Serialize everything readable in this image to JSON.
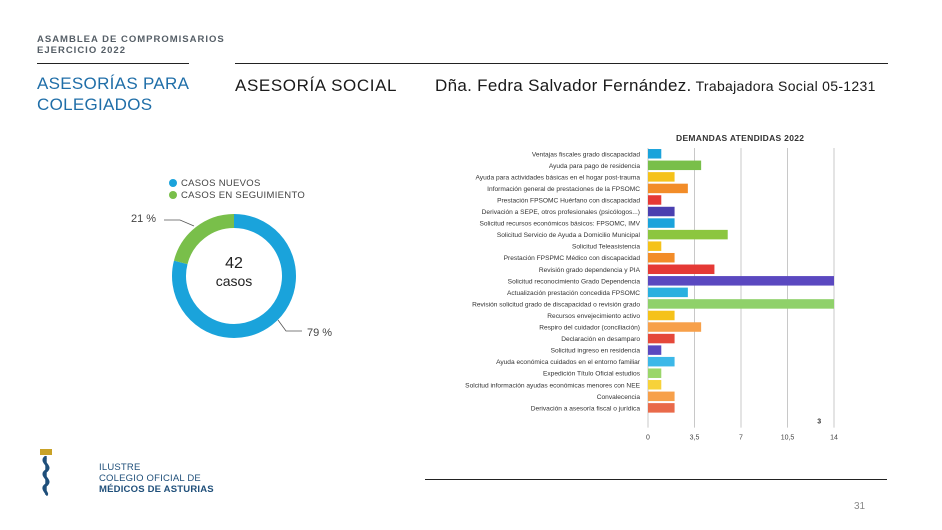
{
  "header": {
    "line1": "ASAMBLEA DE COMPROMISARIOS",
    "line2": "EJERCICIO 2022",
    "left_title_line1": "ASESORÍAS PARA",
    "left_title_line2": "COLEGIADOS",
    "section_title": "ASESORÍA SOCIAL",
    "person_name": "Dña. Fedra Salvador Fernández.",
    "person_role": "Trabajadora Social 05-1231"
  },
  "donut": {
    "legend": [
      {
        "label": "CASOS NUEVOS",
        "color": "#1aa3db"
      },
      {
        "label": "CASOS EN SEGUIMIENTO",
        "color": "#79bf4a"
      }
    ],
    "total_value": "42",
    "total_label": "casos",
    "pct_new_label": "79 %",
    "pct_followup_label": "21 %",
    "pct_new": 79,
    "pct_followup": 21
  },
  "chart_data": {
    "type": "bar",
    "orientation": "horizontal",
    "title": "DEMANDAS ATENDIDAS 2022",
    "categories": [
      "Ventajas fiscales grado discapacidad",
      "Ayuda para pago de residencia",
      "Ayuda para actividades básicas en el hogar post-trauma",
      "Información general de prestaciones de la FPSOMC",
      "Prestación FPSOMC Huérfano con discapacidad",
      "Derivación a SEPE, otros profesionales (psicólogos...)",
      "Solicitud recursos económicos básicos: FPSOMC, IMV",
      "Solicitud Servicio de Ayuda a Domicilio Municipal",
      "Solicitud Teleasistencia",
      "Prestación FPSPMC Médico con discapacidad",
      "Revisión grado dependencia y PIA",
      "Solicitud reconocimiento Grado Dependencia",
      "Actualización prestación concedida FPSOMC",
      "Revisión solicitud grado de discapacidad o revisión grado",
      "Recursos envejecimiento activo",
      "Respiro del cuidador (conciliación)",
      "Declaración en desamparo",
      "Solicitud ingreso en residencia",
      "Ayuda económica cuidados en el entorno familiar",
      "Expedición Título Oficial estudios",
      "Solcitud información ayudas económicas menores con NEE",
      "Convalecencia",
      "Derivación a asesoría fiscal o jurídica"
    ],
    "values": [
      1,
      4,
      2,
      3,
      1,
      2,
      2,
      6,
      1,
      2,
      5,
      14,
      3,
      14,
      2,
      4,
      2,
      1,
      2,
      1,
      1,
      2,
      2
    ],
    "colors": [
      "#1aa3db",
      "#79bf4a",
      "#f5c21a",
      "#f28c28",
      "#e53935",
      "#4a3fb0",
      "#1aa3db",
      "#8cc63f",
      "#f5c21a",
      "#f28c28",
      "#e53935",
      "#5a48c0",
      "#29b0e0",
      "#8fd16a",
      "#f5c21a",
      "#f7a04a",
      "#e5483a",
      "#5a48c0",
      "#3cb8e8",
      "#9ad66a",
      "#f7d23a",
      "#f7a04a",
      "#e96a4a"
    ],
    "xticks": [
      "0",
      "3,5",
      "7",
      "10,5",
      "14"
    ],
    "xlim": [
      0,
      14
    ],
    "grid": true,
    "annotation": "3"
  },
  "footer": {
    "logo_line1": "ILUSTRE",
    "logo_line2": "COLEGIO OFICIAL DE",
    "logo_line3": "MÉDICOS DE ASTURIAS",
    "page_number": "31"
  }
}
